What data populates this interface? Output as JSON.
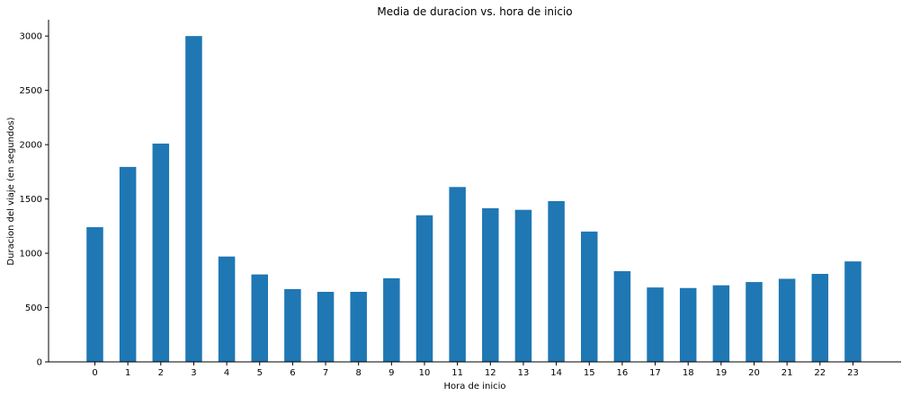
{
  "chart_data": {
    "type": "bar",
    "title": "Media de duracion vs. hora de inicio",
    "xlabel": "Hora de inicio",
    "ylabel": "Duracion del viaje (en segundos)",
    "categories": [
      "0",
      "1",
      "2",
      "3",
      "4",
      "5",
      "6",
      "7",
      "8",
      "9",
      "10",
      "11",
      "12",
      "13",
      "14",
      "15",
      "16",
      "17",
      "18",
      "19",
      "20",
      "21",
      "22",
      "23"
    ],
    "values": [
      1240,
      1795,
      2010,
      3000,
      970,
      805,
      670,
      645,
      645,
      770,
      1350,
      1610,
      1415,
      1400,
      1480,
      1200,
      835,
      685,
      680,
      705,
      735,
      765,
      810,
      925
    ],
    "ylim": [
      0,
      3150
    ],
    "yticks": [
      0,
      500,
      1000,
      1500,
      2000,
      2500,
      3000
    ],
    "bar_color": "#1f77b4",
    "grid": false
  }
}
